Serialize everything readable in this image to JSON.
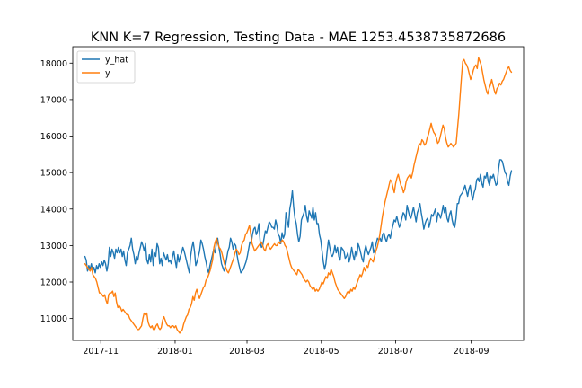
{
  "chart_data": {
    "type": "line",
    "title": "KNN K=7 Regression, Testing Data - MAE 1253.4538735872686",
    "xlabel": "",
    "ylabel": "",
    "x_start": "2017-10-19",
    "x_end": "2018-10-04",
    "xlim": [
      "2017-10-09",
      "2018-10-14"
    ],
    "ylim": [
      10400,
      18450
    ],
    "x_ticks": [
      {
        "date": "2017-11-01",
        "label": "2017-11"
      },
      {
        "date": "2018-01-01",
        "label": "2018-01"
      },
      {
        "date": "2018-03-01",
        "label": "2018-03"
      },
      {
        "date": "2018-05-01",
        "label": "2018-05"
      },
      {
        "date": "2018-07-01",
        "label": "2018-07"
      },
      {
        "date": "2018-09-01",
        "label": "2018-09"
      }
    ],
    "y_ticks": [
      11000,
      12000,
      13000,
      14000,
      15000,
      16000,
      17000,
      18000
    ],
    "grid": false,
    "legend_position": "upper-left",
    "series": [
      {
        "name": "y_hat",
        "color": "#1f77b4",
        "values": [
          12700,
          12600,
          12300,
          12450,
          12350,
          12500,
          12300,
          12400,
          12250,
          12450,
          12350,
          12500,
          12400,
          12550,
          12450,
          12600,
          12500,
          12300,
          12500,
          12950,
          12700,
          12900,
          12800,
          12650,
          12900,
          12800,
          12950,
          12800,
          12900,
          12700,
          12850,
          12600,
          12450,
          12800,
          12900,
          13000,
          13200,
          12900,
          12750,
          12500,
          12700,
          12600,
          12800,
          12950,
          13100,
          13000,
          12850,
          13050,
          12600,
          12500,
          12750,
          12550,
          12900,
          12450,
          12800,
          12700,
          13050,
          12950,
          12500,
          12650,
          12450,
          12800,
          12700,
          12600,
          12750,
          12550,
          12600,
          12500,
          12700,
          12850,
          12600,
          12400,
          12750,
          12550,
          12700,
          12800,
          12950,
          12850,
          12700,
          12550,
          12400,
          12250,
          12700,
          12950,
          13100,
          12850,
          12450,
          12550,
          12700,
          12850,
          13150,
          13050,
          12900,
          12700,
          12550,
          12350,
          12250,
          12450,
          12600,
          12750,
          12900,
          12800,
          13050,
          13200,
          12950,
          12750,
          12500,
          12400,
          12300,
          12450,
          12650,
          12850,
          12950,
          13200,
          13100,
          12900,
          13050,
          13000,
          12750,
          12550,
          12400,
          12250,
          12300,
          12350,
          12450,
          12550,
          12700,
          12900,
          13100,
          13050,
          13300,
          13450,
          13500,
          13300,
          13400,
          13600,
          13100,
          12950,
          13000,
          13200,
          13400,
          13350,
          13500,
          13650,
          13600,
          13500,
          13500,
          13450,
          13700,
          13550,
          13300,
          13250,
          13050,
          13350,
          13200,
          13300,
          13900,
          13700,
          13500,
          14000,
          14200,
          14500,
          14050,
          13750,
          13600,
          13300,
          13100,
          13250,
          13700,
          13800,
          13900,
          14100,
          13800,
          13650,
          13950,
          13850,
          13750,
          14050,
          13700,
          13900,
          13600,
          13600,
          13300,
          13150,
          12850,
          12550,
          12350,
          12500,
          12850,
          13150,
          12950,
          12750,
          12700,
          12800,
          13000,
          12800,
          12950,
          12700,
          12600,
          12950,
          12900,
          12850,
          12650,
          12700,
          12800,
          12550,
          12700,
          12950,
          12750,
          12600,
          12850,
          12700,
          13050,
          12950,
          12800,
          12650,
          12550,
          12850,
          13000,
          12850,
          12750,
          12850,
          12950,
          13100,
          12800,
          12900,
          13050,
          13200,
          13150,
          13200,
          13100,
          13300,
          13350,
          13200,
          13100,
          13250,
          13300,
          13200,
          13400,
          13550,
          13700,
          13650,
          13800,
          13650,
          13500,
          13600,
          13750,
          13900,
          13850,
          13700,
          14100,
          13950,
          13800,
          13750,
          13900,
          14050,
          13850,
          13650,
          13900,
          14000,
          14150,
          13900,
          13700,
          13450,
          13600,
          13700,
          13750,
          13500,
          13650,
          13850,
          13800,
          13900,
          14000,
          13650,
          13900,
          13850,
          13750,
          13900,
          14100,
          13900,
          14050,
          13750,
          13650,
          13850,
          13950,
          13700,
          13550,
          13500,
          13750,
          14150,
          14150,
          14350,
          14400,
          14450,
          14550,
          14650,
          14500,
          14350,
          14550,
          14650,
          14400,
          14250,
          14450,
          14550,
          14800,
          14850,
          14750,
          14950,
          14700,
          14600,
          14900,
          14850,
          15000,
          14750,
          14650,
          14900,
          14850,
          14950,
          14800,
          14650,
          14700,
          15100,
          15350,
          15350,
          15300,
          15150,
          15000,
          14950,
          14750,
          14650,
          14900,
          15050
        ]
      },
      {
        "name": "y",
        "color": "#ff7f0e",
        "values": [
          12500,
          12450,
          12400,
          12350,
          12300,
          12400,
          12200,
          12150,
          12100,
          12000,
          11850,
          11700,
          11700,
          11650,
          11600,
          11650,
          11500,
          11400,
          11650,
          11700,
          11700,
          11750,
          11600,
          11700,
          11450,
          11300,
          11350,
          11300,
          11200,
          11250,
          11200,
          11150,
          11100,
          11100,
          11000,
          10950,
          10900,
          10850,
          10800,
          10750,
          10700,
          10700,
          10750,
          10800,
          11000,
          11150,
          11100,
          11150,
          10900,
          10800,
          10750,
          10800,
          10700,
          10700,
          10800,
          10850,
          10750,
          10700,
          10750,
          10950,
          11050,
          10950,
          10850,
          10800,
          10800,
          10750,
          10800,
          10800,
          10750,
          10800,
          10700,
          10650,
          10600,
          10650,
          10700,
          10850,
          10950,
          11050,
          11100,
          11250,
          11300,
          11400,
          11600,
          11500,
          11700,
          11800,
          11650,
          11550,
          11650,
          11750,
          11850,
          11900,
          12050,
          12100,
          12200,
          12300,
          12450,
          12600,
          12950,
          13100,
          13200,
          13050,
          12950,
          12900,
          12800,
          12650,
          12500,
          12400,
          12300,
          12250,
          12350,
          12450,
          12550,
          12650,
          12800,
          12900,
          12850,
          12750,
          12800,
          13000,
          13100,
          13150,
          13300,
          13350,
          13450,
          13550,
          13300,
          13050,
          12950,
          12850,
          12900,
          12950,
          13000,
          13050,
          13100,
          13000,
          12900,
          12850,
          13000,
          13050,
          12950,
          12900,
          12950,
          13000,
          13050,
          13000,
          13000,
          13100,
          13050,
          13100,
          13150,
          13100,
          13000,
          12950,
          12800,
          12650,
          12500,
          12400,
          12350,
          12300,
          12250,
          12200,
          12350,
          12300,
          12250,
          12200,
          12100,
          12050,
          12000,
          12050,
          12000,
          11900,
          11850,
          11800,
          11850,
          11750,
          11800,
          11750,
          11800,
          11900,
          12000,
          11950,
          12050,
          12150,
          12100,
          12250,
          12200,
          12350,
          12250,
          12150,
          12000,
          11900,
          11800,
          11750,
          11700,
          11650,
          11600,
          11550,
          11600,
          11700,
          11750,
          11700,
          11800,
          11750,
          11850,
          11800,
          11900,
          12000,
          12100,
          12200,
          12150,
          12250,
          12400,
          12300,
          12450,
          12400,
          12550,
          12650,
          12600,
          12550,
          12700,
          12850,
          12950,
          13100,
          13300,
          13550,
          13800,
          14000,
          14200,
          14350,
          14500,
          14650,
          14800,
          14750,
          14600,
          14450,
          14700,
          14850,
          14950,
          14800,
          14650,
          14600,
          14450,
          14550,
          14750,
          14850,
          14900,
          14950,
          14850,
          15000,
          15200,
          15350,
          15500,
          15650,
          15800,
          15750,
          15900,
          15850,
          15750,
          15800,
          15950,
          16050,
          16200,
          16350,
          16200,
          16100,
          16050,
          15950,
          15800,
          15850,
          16000,
          16150,
          16300,
          16200,
          15950,
          15800,
          15700,
          15750,
          15800,
          15750,
          15700,
          15750,
          15800,
          16200,
          16600,
          17100,
          17600,
          18050,
          18100,
          18000,
          17950,
          17850,
          17700,
          17550,
          17650,
          17800,
          17900,
          17950,
          17850,
          18150,
          18050,
          17950,
          17750,
          17550,
          17400,
          17250,
          17150,
          17300,
          17400,
          17550,
          17400,
          17250,
          17150,
          17300,
          17350,
          17450,
          17400,
          17500,
          17550,
          17650,
          17750,
          17850,
          17900,
          17800,
          17750
        ]
      }
    ]
  }
}
